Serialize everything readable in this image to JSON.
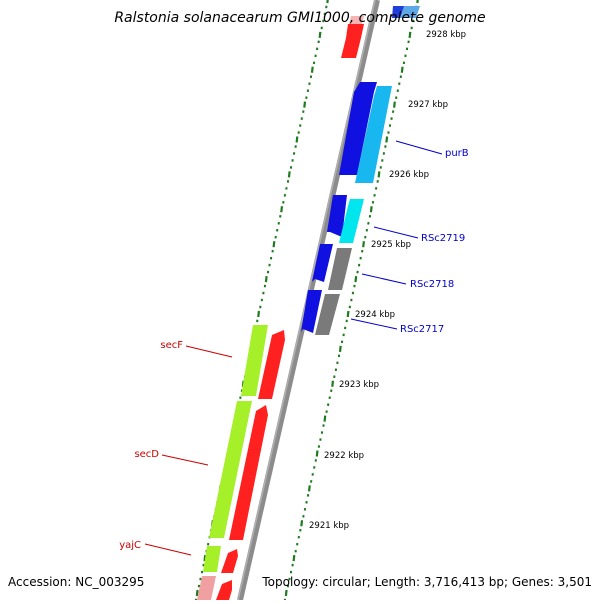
{
  "title": "Ralstonia solanacearum GMI1000, complete genome",
  "footer": {
    "accession": "Accession: NC_003295",
    "topology": "Topology: circular; Length: 3,716,413 bp; Genes: 3,501"
  },
  "colors": {
    "backbone": "#8c8c8c",
    "tick": "#1e7a1e",
    "forward_red": "#ff2020",
    "reverse_green": "#a6f02a",
    "blue": "#1010e0",
    "sky": "#19b7f0",
    "cyan": "#00e5ee",
    "gray": "#7a7a7a",
    "pink": "#f0a0a0",
    "label_blue": "#0000cc",
    "label_red": "#cc0000"
  },
  "scale_labels": [
    "2928 kbp",
    "2927 kbp",
    "2926 kbp",
    "2925 kbp",
    "2924 kbp",
    "2923 kbp",
    "2922 kbp",
    "2921 kbp"
  ],
  "gene_labels": {
    "right": [
      "purB",
      "RSc2719",
      "RSc2718",
      "RSc2717"
    ],
    "left": [
      "secF",
      "secD",
      "yajC"
    ]
  }
}
